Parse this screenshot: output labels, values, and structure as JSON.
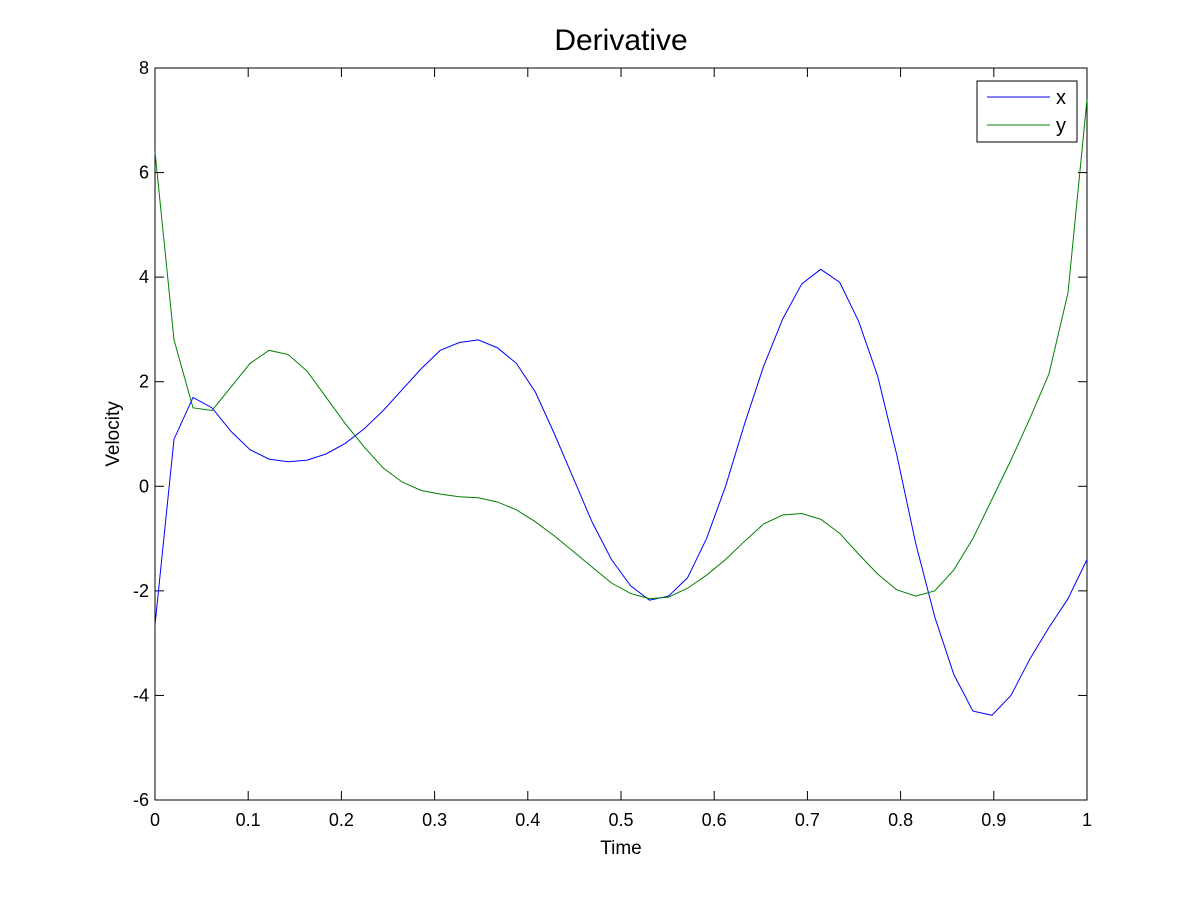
{
  "chart_data": {
    "type": "line",
    "title": "Derivative",
    "xlabel": "Time",
    "ylabel": "Velocity",
    "xlim": [
      0,
      1
    ],
    "ylim": [
      -6,
      8
    ],
    "xticks": [
      "0",
      "0.1",
      "0.2",
      "0.3",
      "0.4",
      "0.5",
      "0.6",
      "0.7",
      "0.8",
      "0.9",
      "1"
    ],
    "yticks": [
      "-6",
      "-4",
      "-2",
      "0",
      "2",
      "4",
      "6",
      "8"
    ],
    "grid": false,
    "legend_position": "top-right",
    "x": [
      0,
      0.0204,
      0.0408,
      0.0612,
      0.0816,
      0.102,
      0.1224,
      0.1429,
      0.1633,
      0.1837,
      0.2041,
      0.2245,
      0.2449,
      0.2653,
      0.2857,
      0.3061,
      0.3265,
      0.3469,
      0.3673,
      0.3878,
      0.4082,
      0.4286,
      0.449,
      0.4694,
      0.4898,
      0.5102,
      0.5306,
      0.551,
      0.5714,
      0.5918,
      0.6122,
      0.6327,
      0.6531,
      0.6735,
      0.6939,
      0.7143,
      0.7347,
      0.7551,
      0.7755,
      0.7959,
      0.8163,
      0.8367,
      0.8571,
      0.8776,
      0.898,
      0.9184,
      0.9388,
      0.9592,
      0.9796,
      1
    ],
    "series": [
      {
        "name": "x",
        "color": "#0000ff",
        "values": [
          -2.65,
          0.9,
          1.7,
          1.5,
          1.05,
          0.7,
          0.52,
          0.47,
          0.5,
          0.62,
          0.82,
          1.1,
          1.45,
          1.85,
          2.25,
          2.6,
          2.75,
          2.8,
          2.65,
          2.35,
          1.8,
          1.0,
          0.15,
          -0.7,
          -1.4,
          -1.9,
          -2.18,
          -2.1,
          -1.75,
          -1.0,
          0.0,
          1.2,
          2.3,
          3.2,
          3.87,
          4.15,
          3.9,
          3.15,
          2.1,
          0.6,
          -1.1,
          -2.5,
          -3.6,
          -4.3,
          -4.38,
          -4.0,
          -3.3,
          -2.7,
          -2.15,
          -1.4
        ]
      },
      {
        "name": "y",
        "color": "#008000",
        "values": [
          6.4,
          2.8,
          1.5,
          1.45,
          1.9,
          2.35,
          2.6,
          2.52,
          2.2,
          1.7,
          1.2,
          0.75,
          0.35,
          0.08,
          -0.08,
          -0.15,
          -0.2,
          -0.22,
          -0.3,
          -0.45,
          -0.68,
          -0.95,
          -1.25,
          -1.55,
          -1.85,
          -2.05,
          -2.15,
          -2.12,
          -1.95,
          -1.7,
          -1.4,
          -1.05,
          -0.72,
          -0.55,
          -0.52,
          -0.63,
          -0.9,
          -1.3,
          -1.68,
          -1.98,
          -2.1,
          -2.0,
          -1.6,
          -1.0,
          -0.25,
          0.5,
          1.3,
          2.15,
          3.7,
          7.4
        ]
      }
    ]
  }
}
